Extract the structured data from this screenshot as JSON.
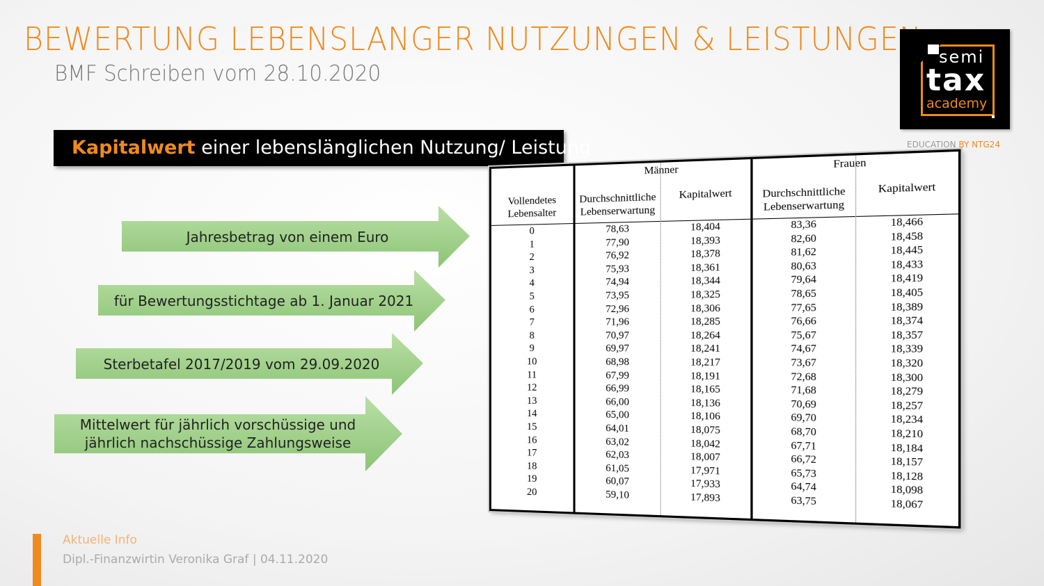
{
  "header": {
    "title": "BEWERTUNG LEBENSLANGER NUTZUNGEN & LEISTUNGEN",
    "subtitle": "BMF Schreiben vom 28.10.2020"
  },
  "logo": {
    "line1": "semi",
    "line2": "tax",
    "line3": "academy",
    "tagline_a": "EDUCATION",
    "tagline_b": "BY NTG24"
  },
  "banner": {
    "bold": "Kapitalwert",
    "rest": " einer lebenslänglichen Nutzung/ Leistung"
  },
  "arrows": [
    "Jahresbetrag von einem Euro",
    "für Bewertungsstichtage ab 1. Januar 2021",
    "Sterbetafel 2017/2019 vom 29.09.2020",
    "Mittelwert für jährlich vorschüssige und jährlich nachschüssige Zahlungsweise"
  ],
  "table": {
    "headers": {
      "age": "Vollendetes Lebensalter",
      "men": "Männer",
      "women": "Frauen",
      "life": "Durchschnittliche Lebenserwartung",
      "capital": "Kapitalwert"
    },
    "age": [
      "0",
      "1",
      "2",
      "3",
      "4",
      "5",
      "6",
      "7",
      "8",
      "9",
      "10",
      "11",
      "12",
      "13",
      "14",
      "15",
      "16",
      "17",
      "18",
      "19",
      "20"
    ],
    "men_life": [
      "78,63",
      "77,90",
      "76,92",
      "75,93",
      "74,94",
      "73,95",
      "72,96",
      "71,96",
      "70,97",
      "69,97",
      "68,98",
      "67,99",
      "66,99",
      "66,00",
      "65,00",
      "64,01",
      "63,02",
      "62,03",
      "61,05",
      "60,07",
      "59,10"
    ],
    "men_capital": [
      "18,404",
      "18,393",
      "18,378",
      "18,361",
      "18,344",
      "18,325",
      "18,306",
      "18,285",
      "18,264",
      "18,241",
      "18,217",
      "18,191",
      "18,165",
      "18,136",
      "18,106",
      "18,075",
      "18,042",
      "18,007",
      "17,971",
      "17,933",
      "17,893"
    ],
    "women_life": [
      "83,36",
      "82,60",
      "81,62",
      "80,63",
      "79,64",
      "78,65",
      "77,65",
      "76,66",
      "75,67",
      "74,67",
      "73,67",
      "72,68",
      "71,68",
      "70,69",
      "69,70",
      "68,70",
      "67,71",
      "66,72",
      "65,73",
      "64,74",
      "63,75"
    ],
    "women_capital": [
      "18,466",
      "18,458",
      "18,445",
      "18,433",
      "18,419",
      "18,405",
      "18,389",
      "18,374",
      "18,357",
      "18,339",
      "18,320",
      "18,300",
      "18,279",
      "18,257",
      "18,234",
      "18,210",
      "18,184",
      "18,157",
      "18,128",
      "18,098",
      "18,067"
    ]
  },
  "footer": {
    "label": "Aktuelle Info",
    "author": "Dipl.-Finanzwirtin Veronika Graf | 04.11.2020"
  },
  "colors": {
    "accent": "#ef8a1e",
    "arrow": "#9fd089"
  }
}
